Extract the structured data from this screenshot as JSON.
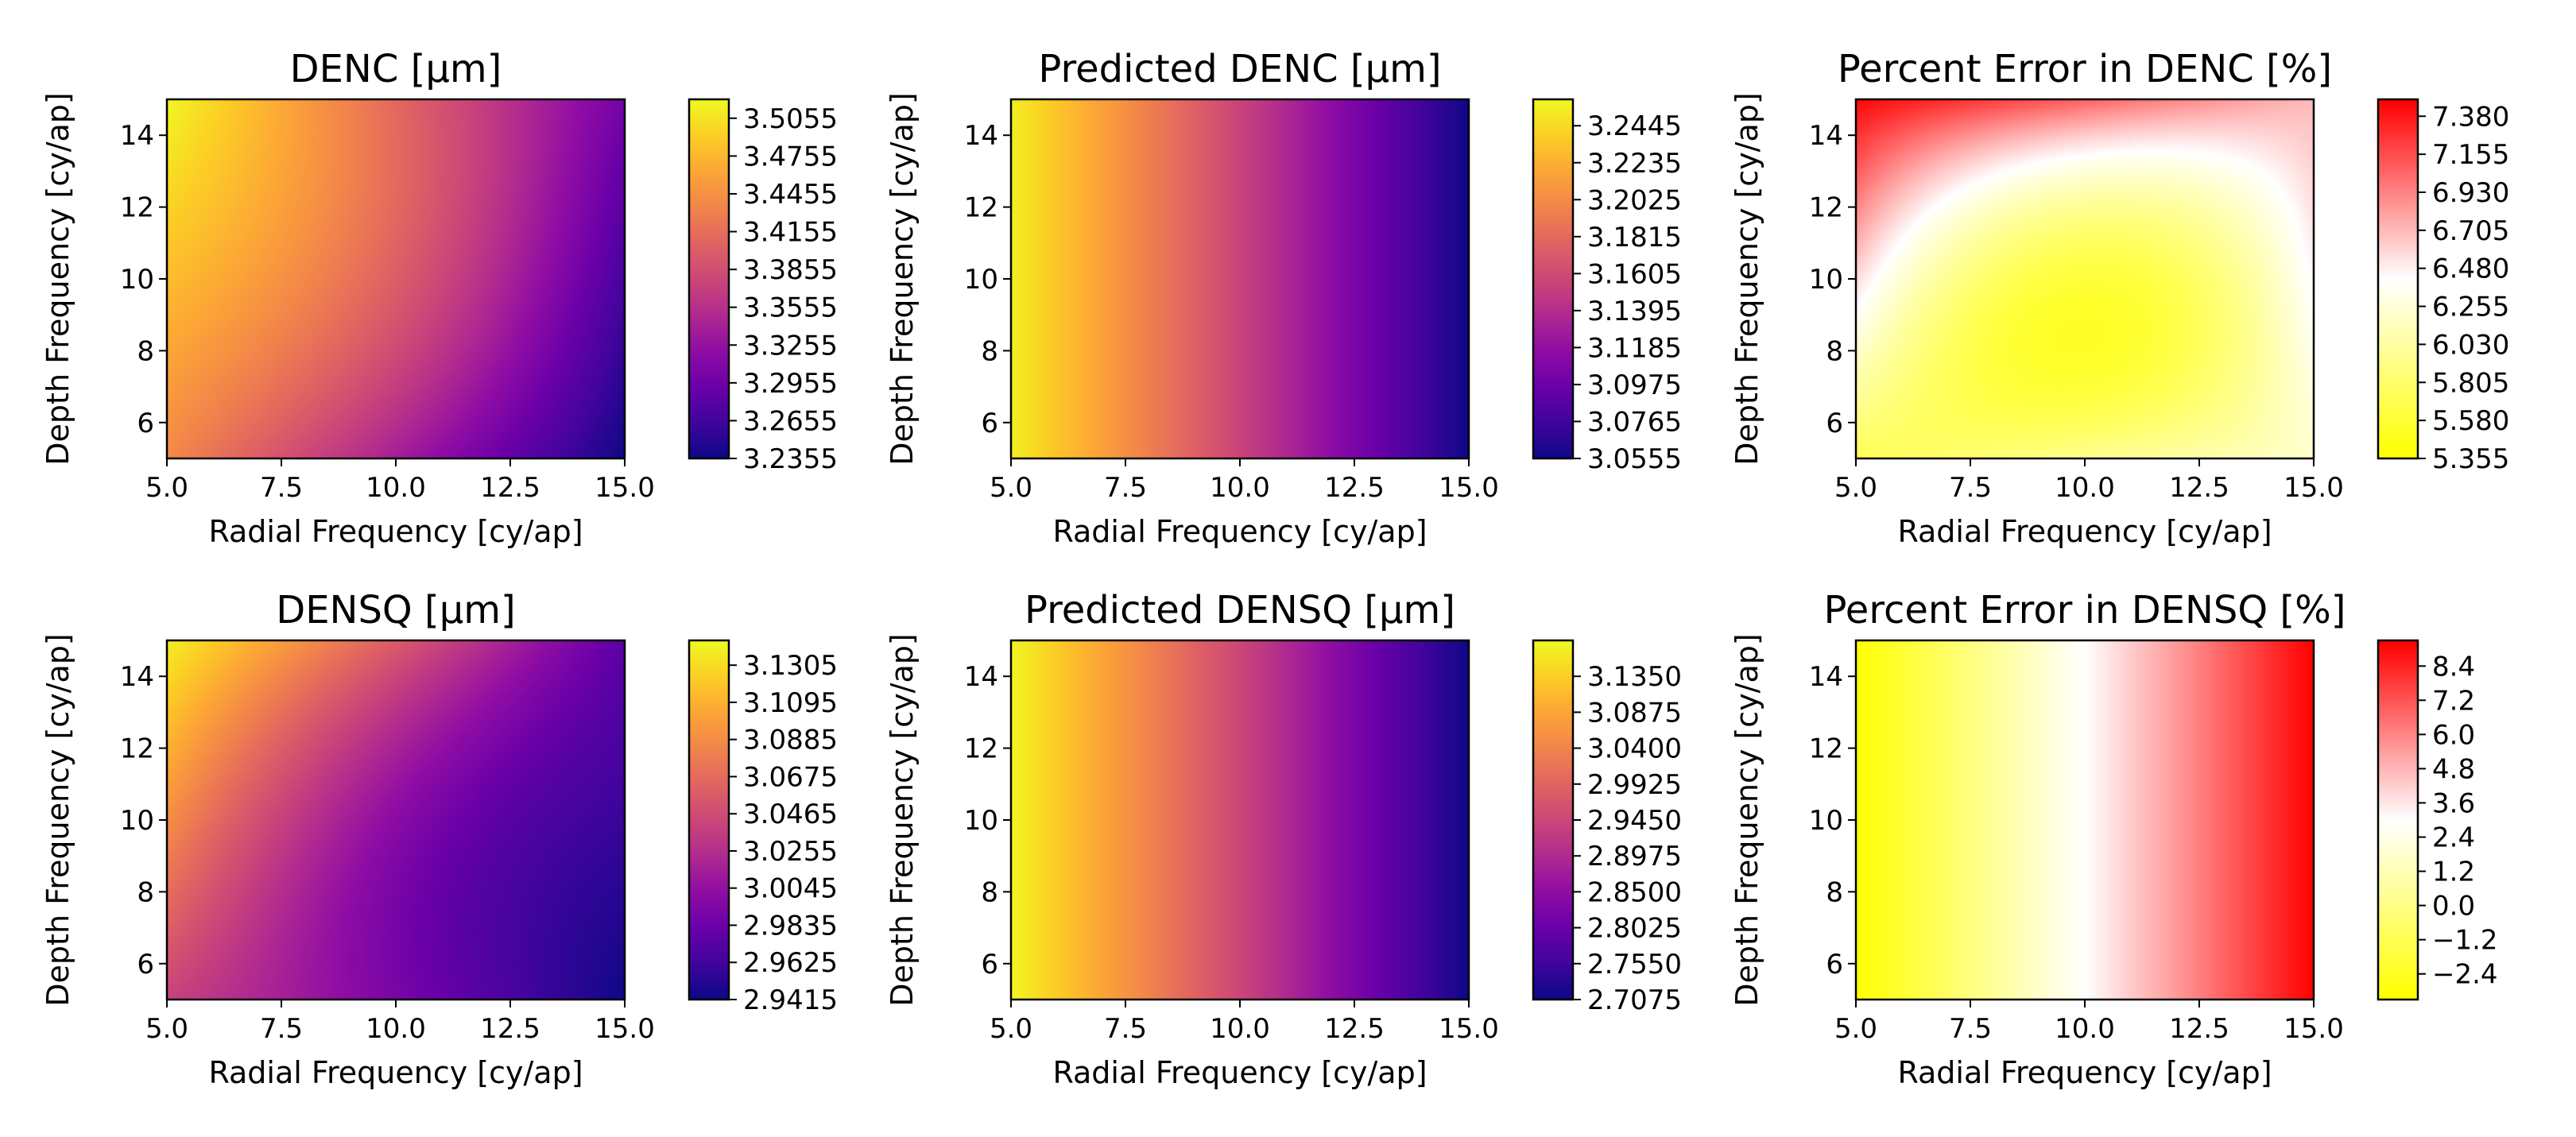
{
  "chart_data": [
    {
      "type": "heatmap",
      "title": "DENC [µm]",
      "xlabel": "Radial Frequency [cy/ap]",
      "ylabel": "Depth Frequency [cy/ap]",
      "xlim": [
        5.0,
        15.0
      ],
      "ylim": [
        5,
        15
      ],
      "xticks": [
        "5.0",
        "7.5",
        "10.0",
        "12.5",
        "15.0"
      ],
      "yticks": [
        "6",
        "8",
        "10",
        "12",
        "14"
      ],
      "colormap": "plasma",
      "color_range": [
        3.2355,
        3.5205
      ],
      "colorbar_ticks": [
        "3.2355",
        "3.2655",
        "3.2955",
        "3.3255",
        "3.3555",
        "3.3855",
        "3.4155",
        "3.4455",
        "3.4755",
        "3.5055"
      ],
      "corners": {
        "x5_y5": 3.44,
        "x5_y15": 3.52,
        "x15_y5": 3.236,
        "x15_y15": 3.3
      },
      "center": {
        "x10_y10": 3.4
      },
      "field": "peaked-left"
    },
    {
      "type": "heatmap",
      "title": "Predicted DENC [µm]",
      "xlabel": "Radial Frequency [cy/ap]",
      "ylabel": "Depth Frequency [cy/ap]",
      "xlim": [
        5.0,
        15.0
      ],
      "ylim": [
        5,
        15
      ],
      "xticks": [
        "5.0",
        "7.5",
        "10.0",
        "12.5",
        "15.0"
      ],
      "yticks": [
        "6",
        "8",
        "10",
        "12",
        "14"
      ],
      "colormap": "plasma",
      "color_range": [
        3.0555,
        3.2595
      ],
      "colorbar_ticks": [
        "3.0555",
        "3.0765",
        "3.0975",
        "3.1185",
        "3.1395",
        "3.1605",
        "3.1815",
        "3.2025",
        "3.2235",
        "3.2445"
      ],
      "values_along_x": {
        "x": [
          5.0,
          15.0
        ],
        "value": [
          3.255,
          3.056
        ]
      },
      "field": "linear-x"
    },
    {
      "type": "heatmap",
      "title": "Percent Error in DENC [%]",
      "xlabel": "Radial Frequency [cy/ap]",
      "ylabel": "Depth Frequency [cy/ap]",
      "xlim": [
        5.0,
        15.0
      ],
      "ylim": [
        5,
        15
      ],
      "xticks": [
        "5.0",
        "7.5",
        "10.0",
        "12.5",
        "15.0"
      ],
      "yticks": [
        "6",
        "8",
        "10",
        "12",
        "14"
      ],
      "colormap": "yellow-white-red",
      "color_range": [
        5.355,
        7.48
      ],
      "colorbar_ticks": [
        "5.355",
        "5.580",
        "5.805",
        "6.030",
        "6.255",
        "6.480",
        "6.705",
        "6.930",
        "7.155",
        "7.380"
      ],
      "corners": {
        "x5_y5": 5.7,
        "x5_y15": 7.45,
        "x15_y5": 6.2,
        "x15_y15": 6.7
      },
      "center": {
        "x10_y10": 5.6
      },
      "field": "bowl"
    },
    {
      "type": "heatmap",
      "title": "DENSQ [µm]",
      "xlabel": "Radial Frequency [cy/ap]",
      "ylabel": "Depth Frequency [cy/ap]",
      "xlim": [
        5.0,
        15.0
      ],
      "ylim": [
        5,
        15
      ],
      "xticks": [
        "5.0",
        "7.5",
        "10.0",
        "12.5",
        "15.0"
      ],
      "yticks": [
        "6",
        "8",
        "10",
        "12",
        "14"
      ],
      "colormap": "plasma",
      "color_range": [
        2.9415,
        3.1445
      ],
      "colorbar_ticks": [
        "2.9415",
        "2.9625",
        "2.9835",
        "3.0045",
        "3.0255",
        "3.0465",
        "3.0675",
        "3.0885",
        "3.1095",
        "3.1305"
      ],
      "corners": {
        "x5_y5": 3.04,
        "x5_y15": 3.14,
        "x15_y5": 2.942,
        "x15_y15": 2.975
      },
      "center": {
        "x10_y10": 3.0
      },
      "field": "peaked-left"
    },
    {
      "type": "heatmap",
      "title": "Predicted DENSQ [µm]",
      "xlabel": "Radial Frequency [cy/ap]",
      "ylabel": "Depth Frequency [cy/ap]",
      "xlim": [
        5.0,
        15.0
      ],
      "ylim": [
        5,
        15
      ],
      "xticks": [
        "5.0",
        "7.5",
        "10.0",
        "12.5",
        "15.0"
      ],
      "yticks": [
        "6",
        "8",
        "10",
        "12",
        "14"
      ],
      "colormap": "plasma",
      "color_range": [
        2.7075,
        3.1825
      ],
      "colorbar_ticks": [
        "2.7075",
        "2.7550",
        "2.8025",
        "2.8500",
        "2.8975",
        "2.9450",
        "2.9925",
        "3.0400",
        "3.0875",
        "3.1350"
      ],
      "values_along_x": {
        "x": [
          5.0,
          15.0
        ],
        "value": [
          3.18,
          2.708
        ]
      },
      "field": "linear-x"
    },
    {
      "type": "heatmap",
      "title": "Percent Error in DENSQ [%]",
      "xlabel": "Radial Frequency [cy/ap]",
      "ylabel": "Depth Frequency [cy/ap]",
      "xlim": [
        5.0,
        15.0
      ],
      "ylim": [
        5,
        15
      ],
      "xticks": [
        "5.0",
        "7.5",
        "10.0",
        "12.5",
        "15.0"
      ],
      "yticks": [
        "6",
        "8",
        "10",
        "12",
        "14"
      ],
      "colormap": "yellow-white-red",
      "color_range": [
        -3.3,
        9.3
      ],
      "colorbar_ticks": [
        "−2.4",
        "−1.2",
        "0.0",
        "1.2",
        "2.4",
        "3.6",
        "4.8",
        "6.0",
        "7.2",
        "8.4"
      ],
      "values_along_x": {
        "x": [
          5.0,
          15.0
        ],
        "value": [
          -3.3,
          9.3
        ]
      },
      "field": "linear-x"
    }
  ]
}
